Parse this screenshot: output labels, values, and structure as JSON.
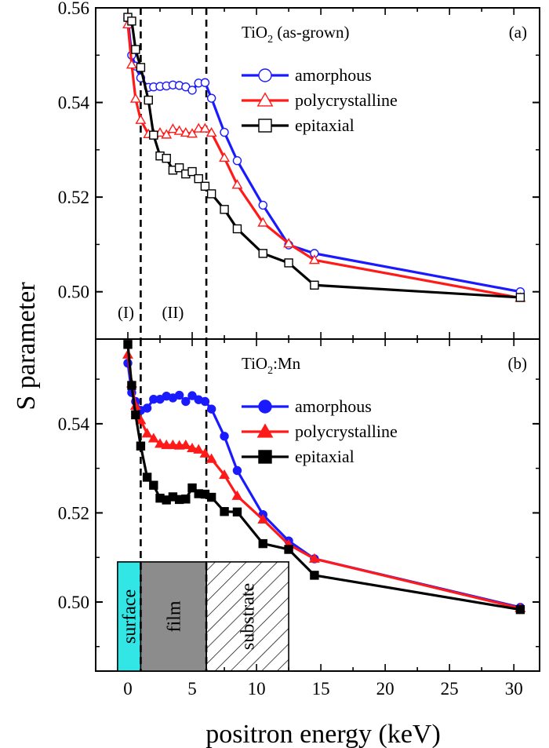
{
  "chart_data": {
    "type": "line",
    "xlabel": "positron energy (keV)",
    "ylabel": "S parameter",
    "xlim": [
      -2.5,
      32
    ],
    "xticks": [
      0,
      5,
      10,
      15,
      20,
      25,
      30
    ],
    "vlines_x": [
      1.0,
      6.1
    ],
    "colors": {
      "amorphous": "#1a1aff",
      "polycrystalline": "#ff1a1a",
      "epitaxial": "#000000"
    },
    "panels": [
      {
        "id": "a",
        "title": "TiO$_2$ (as-grown)",
        "title_main": "TiO",
        "title_sub": "2",
        "title_rest": " (as-grown)",
        "tag": "(a)",
        "ylim": [
          0.49,
          0.56
        ],
        "yticks": [
          0.5,
          0.52,
          0.54,
          0.56
        ],
        "yticklabels": [
          "0.50",
          "0.52",
          "0.54",
          "0.56"
        ],
        "marker_filled": false,
        "regions": [
          "(I)",
          "(II)"
        ],
        "series": [
          {
            "name": "amorphous",
            "marker": "circle",
            "x": [
              0.0,
              0.3,
              0.6,
              1.0,
              1.6,
              2.0,
              2.5,
              3.0,
              3.5,
              4.0,
              4.5,
              5.0,
              5.5,
              6.0,
              6.5,
              7.5,
              8.5,
              10.5,
              12.5,
              14.5,
              30.5
            ],
            "y": [
              0.5578,
              0.55,
              0.5477,
              0.5452,
              0.5432,
              0.5433,
              0.5434,
              0.5435,
              0.5437,
              0.5436,
              0.5433,
              0.5426,
              0.5441,
              0.5442,
              0.5409,
              0.5337,
              0.5277,
              0.5183,
              0.5099,
              0.5081,
              0.5
            ]
          },
          {
            "name": "polycrystalline",
            "marker": "triangle",
            "x": [
              0.0,
              0.3,
              0.6,
              1.0,
              1.6,
              2.0,
              2.5,
              3.0,
              3.5,
              4.0,
              4.5,
              5.0,
              5.5,
              6.0,
              6.5,
              7.5,
              8.5,
              10.5,
              12.5,
              14.5,
              30.5
            ],
            "y": [
              0.5565,
              0.548,
              0.5408,
              0.5363,
              0.5333,
              0.5334,
              0.5336,
              0.5332,
              0.5344,
              0.534,
              0.5336,
              0.5334,
              0.5345,
              0.5345,
              0.5336,
              0.5283,
              0.5226,
              0.5146,
              0.5102,
              0.5067,
              0.4987
            ]
          },
          {
            "name": "epitaxial",
            "marker": "square",
            "x": [
              0.0,
              0.3,
              0.6,
              1.0,
              1.6,
              2.0,
              2.5,
              3.0,
              3.5,
              4.0,
              4.5,
              5.0,
              5.5,
              6.0,
              6.5,
              7.5,
              8.5,
              10.5,
              12.5,
              14.5,
              30.5
            ],
            "y": [
              0.558,
              0.5572,
              0.5512,
              0.5474,
              0.5405,
              0.5331,
              0.5287,
              0.5282,
              0.5257,
              0.5262,
              0.5249,
              0.5254,
              0.5239,
              0.5223,
              0.5207,
              0.5174,
              0.5133,
              0.5081,
              0.5061,
              0.5014,
              0.4988
            ]
          }
        ]
      },
      {
        "id": "b",
        "title": "TiO$_2$:Mn",
        "title_main": "TiO",
        "title_sub": "2",
        "title_rest": ":Mn",
        "tag": "(b)",
        "ylim": [
          0.4845,
          0.559
        ],
        "yticks": [
          0.5,
          0.52,
          0.54
        ],
        "yticklabels": [
          "0.50",
          "0.52",
          "0.54"
        ],
        "marker_filled": true,
        "boxes": [
          "surface",
          "film",
          "substrate"
        ],
        "series": [
          {
            "name": "amorphous",
            "marker": "circle",
            "x": [
              0.0,
              0.3,
              0.6,
              1.0,
              1.5,
              2.0,
              2.5,
              3.0,
              3.5,
              4.0,
              4.5,
              5.0,
              5.5,
              6.0,
              6.5,
              7.5,
              8.5,
              10.5,
              12.5,
              14.5,
              30.5
            ],
            "y": [
              0.5536,
              0.547,
              0.545,
              0.543,
              0.5435,
              0.5455,
              0.5455,
              0.5462,
              0.5458,
              0.5464,
              0.545,
              0.5463,
              0.5454,
              0.545,
              0.5433,
              0.5372,
              0.5295,
              0.5196,
              0.5137,
              0.5097,
              0.4988
            ]
          },
          {
            "name": "polycrystalline",
            "marker": "triangle",
            "x": [
              0.0,
              0.3,
              0.6,
              1.0,
              1.5,
              2.0,
              2.5,
              3.0,
              3.5,
              4.0,
              4.5,
              5.0,
              5.5,
              6.0,
              6.5,
              7.5,
              8.5,
              10.5,
              12.5,
              14.5,
              30.5
            ],
            "y": [
              0.5555,
              0.549,
              0.544,
              0.5408,
              0.5378,
              0.5367,
              0.5355,
              0.5352,
              0.5352,
              0.5351,
              0.5352,
              0.5345,
              0.5342,
              0.5333,
              0.5321,
              0.5285,
              0.5238,
              0.5185,
              0.5129,
              0.5097,
              0.4986
            ]
          },
          {
            "name": "epitaxial",
            "marker": "square",
            "x": [
              0.0,
              0.3,
              0.6,
              1.0,
              1.5,
              2.0,
              2.5,
              3.0,
              3.5,
              4.0,
              4.5,
              5.0,
              5.5,
              6.0,
              6.5,
              7.5,
              8.5,
              10.5,
              12.5,
              14.5,
              30.5
            ],
            "y": [
              0.5578,
              0.5486,
              0.542,
              0.535,
              0.528,
              0.5262,
              0.5233,
              0.5229,
              0.5236,
              0.523,
              0.5231,
              0.5256,
              0.5243,
              0.5242,
              0.5235,
              0.5203,
              0.5202,
              0.5131,
              0.5118,
              0.506,
              0.4983
            ]
          }
        ]
      }
    ]
  }
}
